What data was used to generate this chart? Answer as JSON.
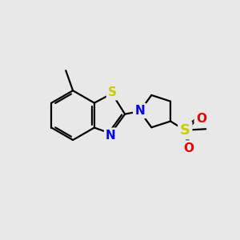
{
  "background_color": "#e8e8e8",
  "bond_color": "#000000",
  "bond_width": 1.6,
  "atom_colors": {
    "S_thz": "#cccc00",
    "S_sulf": "#cccc00",
    "N": "#0000ee",
    "O": "#ee0000"
  },
  "font_size": 11,
  "fig_size": [
    3.0,
    3.0
  ],
  "dpi": 100
}
